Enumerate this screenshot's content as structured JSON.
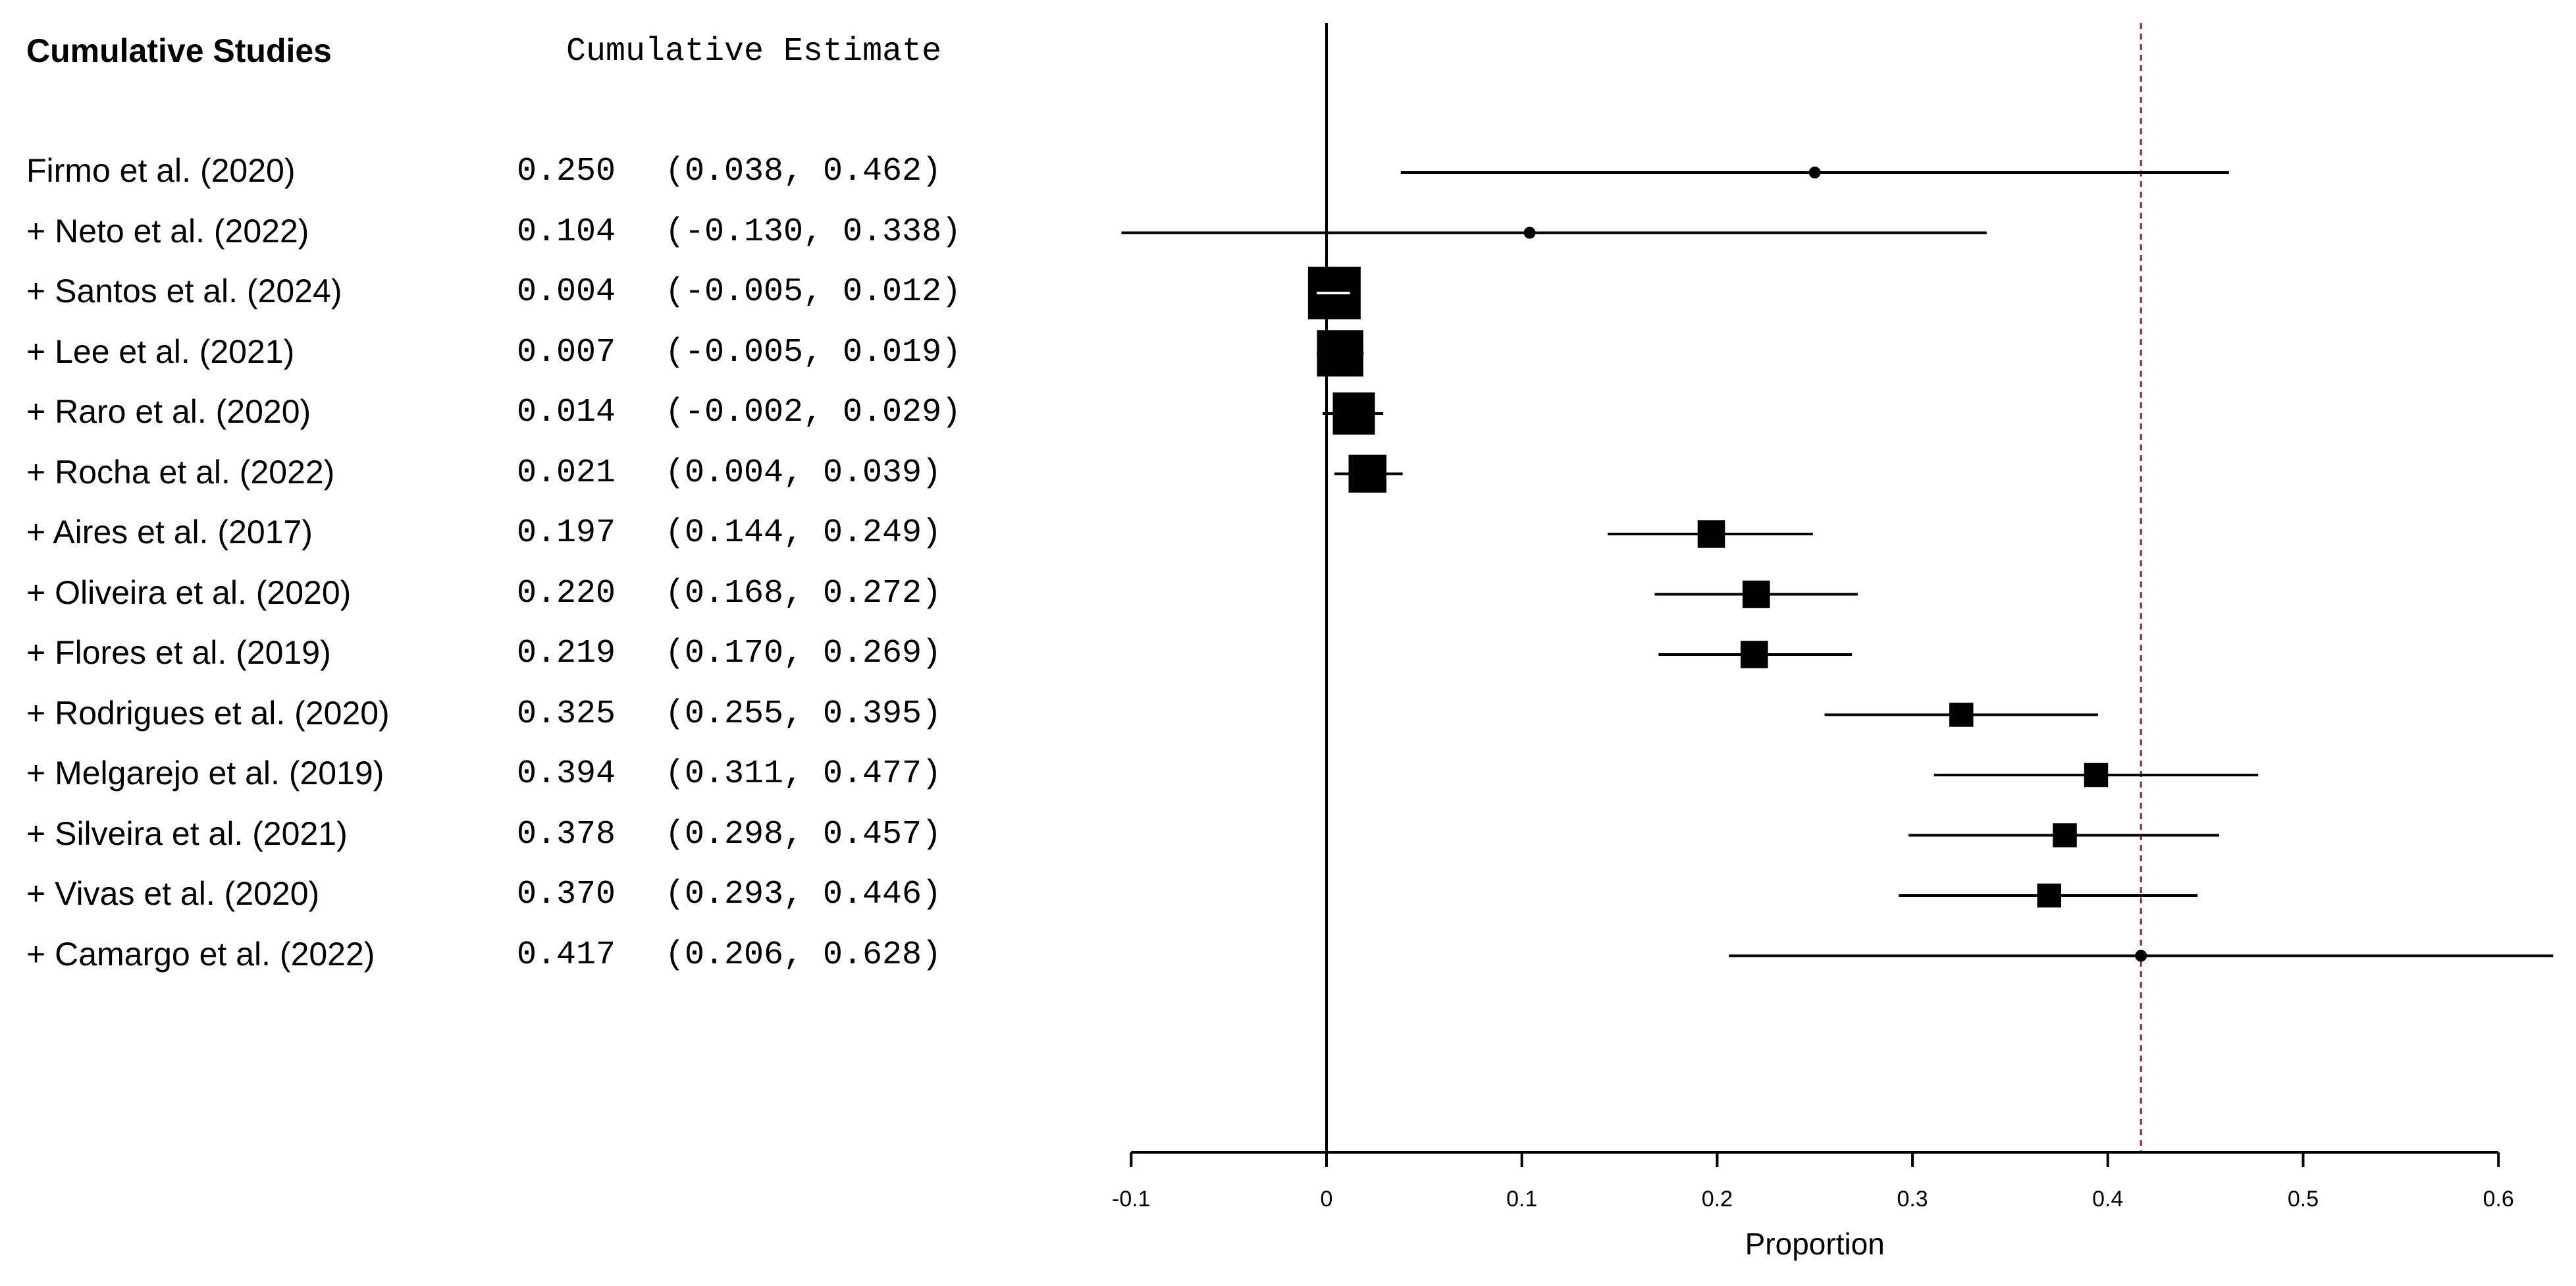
{
  "chart_data": {
    "type": "forest",
    "header_left": "Cumulative Studies",
    "header_right": "Cumulative Estimate",
    "xlabel": "Proportion",
    "xlim": [
      -0.1,
      0.6
    ],
    "x_ticks": [
      "-0.1",
      "0",
      "0.1",
      "0.2",
      "0.3",
      "0.4",
      "0.5",
      "0.6"
    ],
    "x_tick_values": [
      -0.1,
      0,
      0.1,
      0.2,
      0.3,
      0.4,
      0.5,
      0.6
    ],
    "zero_line": 0,
    "reference_line": 0.417,
    "reference_line_color": "#b22222",
    "rows": [
      {
        "label": "Firmo et al. (2020)",
        "estimate": 0.25,
        "lower": 0.038,
        "upper": 0.462,
        "est_text": "0.250",
        "ci_text": "(0.038, 0.462)",
        "weight": 0.15
      },
      {
        "label": "+ Neto et al. (2022)",
        "estimate": 0.104,
        "lower": -0.13,
        "upper": 0.338,
        "est_text": "0.104",
        "ci_text": "(-0.130, 0.338)",
        "weight": 0.15
      },
      {
        "label": "+ Santos et al. (2024)",
        "estimate": 0.004,
        "lower": -0.005,
        "upper": 0.012,
        "est_text": "0.004",
        "ci_text": "(-0.005, 0.012)",
        "weight": 1.0
      },
      {
        "label": "+ Lee et al. (2021)",
        "estimate": 0.007,
        "lower": -0.005,
        "upper": 0.019,
        "est_text": "0.007",
        "ci_text": "(-0.005, 0.019)",
        "weight": 0.85
      },
      {
        "label": "+ Raro et al. (2020)",
        "estimate": 0.014,
        "lower": -0.002,
        "upper": 0.029,
        "est_text": "0.014",
        "ci_text": "(-0.002, 0.029)",
        "weight": 0.75
      },
      {
        "label": "+ Rocha et al. (2022)",
        "estimate": 0.021,
        "lower": 0.004,
        "upper": 0.039,
        "est_text": "0.021",
        "ci_text": "(0.004, 0.039)",
        "weight": 0.65
      },
      {
        "label": "+ Aires et al. (2017)",
        "estimate": 0.197,
        "lower": 0.144,
        "upper": 0.249,
        "est_text": "0.197",
        "ci_text": "(0.144, 0.249)",
        "weight": 0.4
      },
      {
        "label": "+ Oliveira et al. (2020)",
        "estimate": 0.22,
        "lower": 0.168,
        "upper": 0.272,
        "est_text": "0.220",
        "ci_text": "(0.168, 0.272)",
        "weight": 0.4
      },
      {
        "label": "+ Flores et al. (2019)",
        "estimate": 0.219,
        "lower": 0.17,
        "upper": 0.269,
        "est_text": "0.219",
        "ci_text": "(0.170, 0.269)",
        "weight": 0.4
      },
      {
        "label": "+ Rodrigues et al. (2020)",
        "estimate": 0.325,
        "lower": 0.255,
        "upper": 0.395,
        "est_text": "0.325",
        "ci_text": "(0.255, 0.395)",
        "weight": 0.32
      },
      {
        "label": "+ Melgarejo et al. (2019)",
        "estimate": 0.394,
        "lower": 0.311,
        "upper": 0.477,
        "est_text": "0.394",
        "ci_text": "(0.311, 0.477)",
        "weight": 0.32
      },
      {
        "label": "+ Silveira et al. (2021)",
        "estimate": 0.378,
        "lower": 0.298,
        "upper": 0.457,
        "est_text": "0.378",
        "ci_text": "(0.298, 0.457)",
        "weight": 0.32
      },
      {
        "label": "+ Vivas et al. (2020)",
        "estimate": 0.37,
        "lower": 0.293,
        "upper": 0.446,
        "est_text": "0.370",
        "ci_text": "(0.293, 0.446)",
        "weight": 0.32
      },
      {
        "label": "+ Camargo et al. (2022)",
        "estimate": 0.417,
        "lower": 0.206,
        "upper": 0.628,
        "est_text": "0.417",
        "ci_text": "(0.206, 0.628)",
        "weight": 0.15
      }
    ]
  }
}
